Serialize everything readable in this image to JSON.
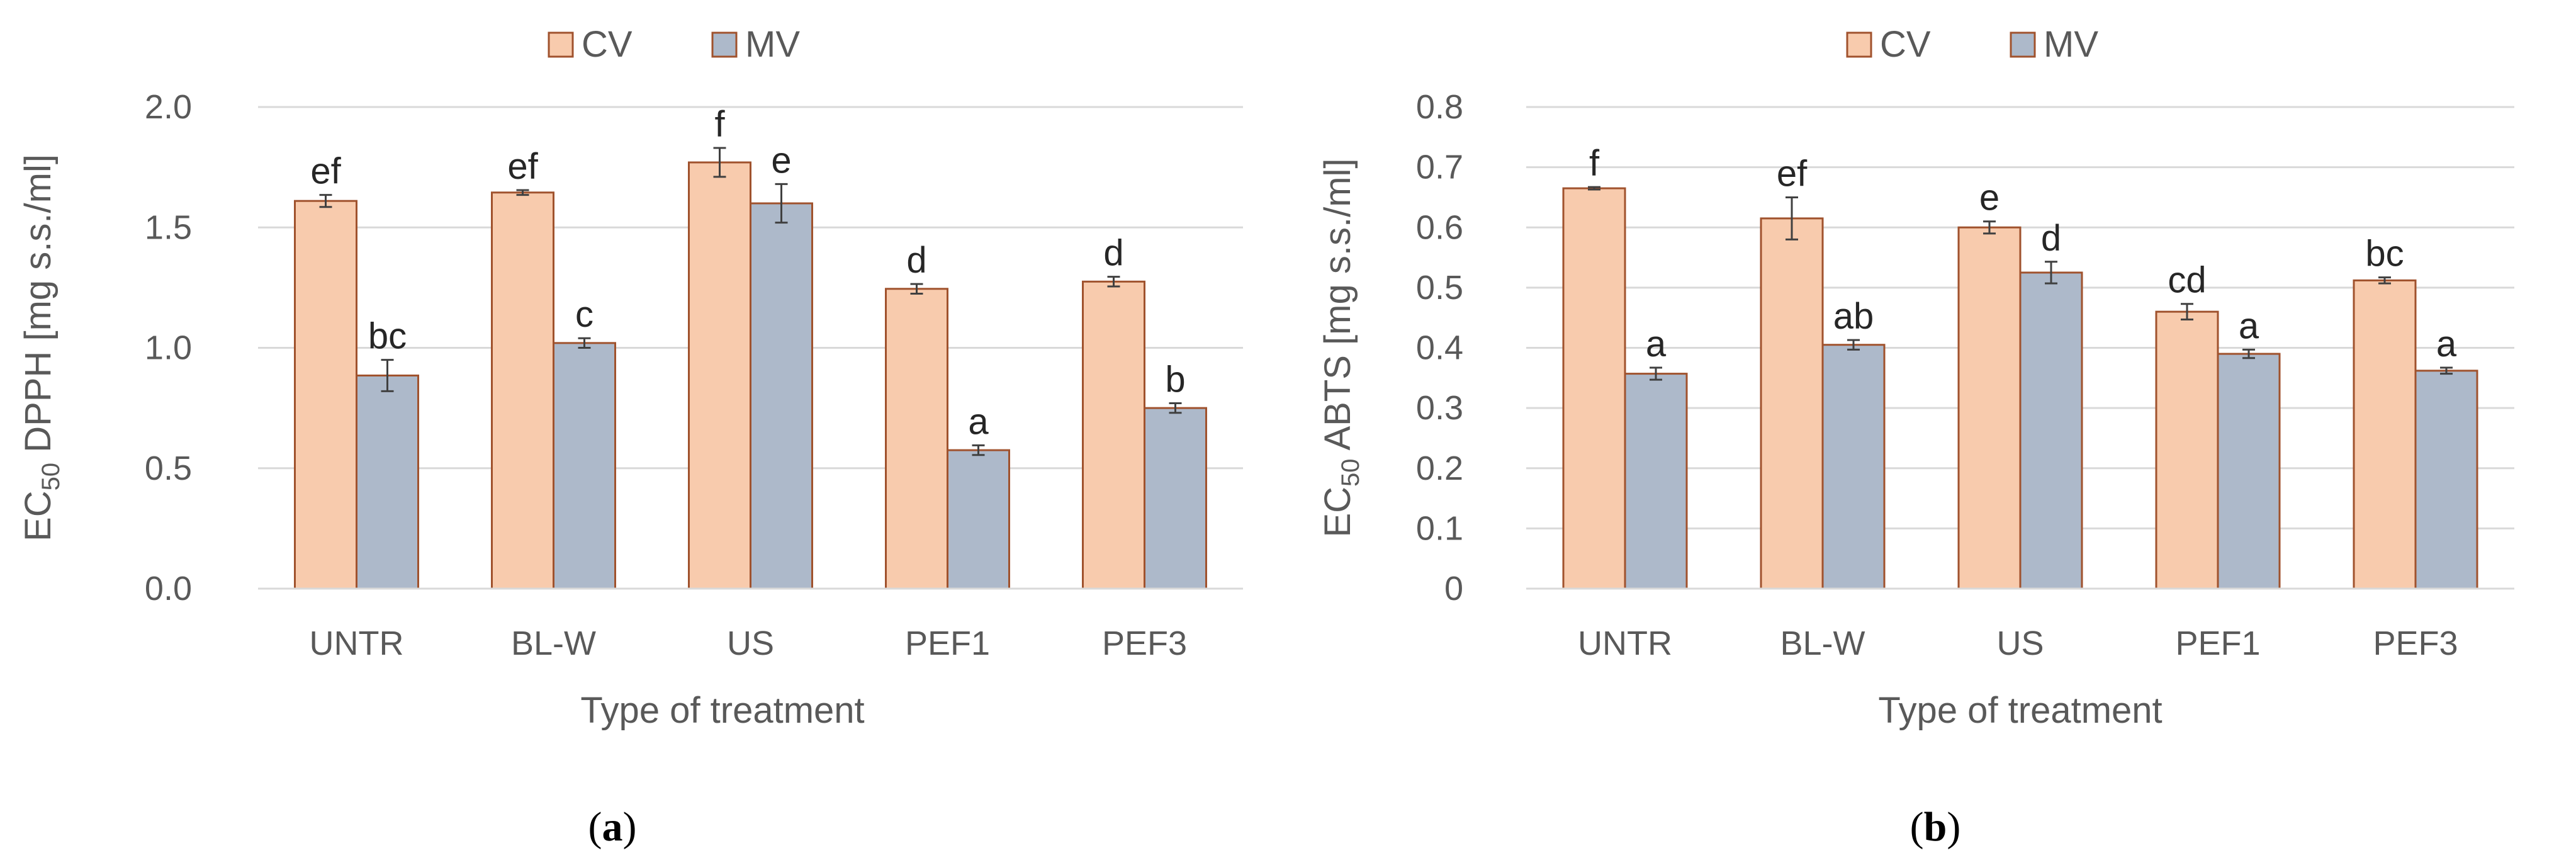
{
  "colors": {
    "cv": "#F8CBAD",
    "mv": "#ADB9CA",
    "bar_edge": "#A0522D",
    "grid": "#D9D9D9",
    "error": "#404040"
  },
  "chart_data": [
    {
      "type": "bar",
      "categories": [
        "UNTR",
        "BL-W",
        "US",
        "PEF1",
        "PEF3"
      ],
      "series": [
        {
          "name": "CV",
          "values": [
            1.61,
            1.645,
            1.77,
            1.245,
            1.275
          ],
          "errors": [
            0.025,
            0.01,
            0.06,
            0.02,
            0.02
          ],
          "letters": [
            "ef",
            "ef",
            "f",
            "d",
            "d"
          ]
        },
        {
          "name": "MV",
          "values": [
            0.885,
            1.02,
            1.6,
            0.575,
            0.75
          ],
          "errors": [
            0.065,
            0.02,
            0.08,
            0.02,
            0.02
          ],
          "letters": [
            "bc",
            "c",
            "e",
            "a",
            "b"
          ]
        }
      ],
      "ylim": [
        0,
        2.0
      ],
      "yticks": [
        "0.0",
        "0.5",
        "1.0",
        "1.5",
        "2.0"
      ],
      "ylabel_pre": "EC",
      "ylabel_sub": "50",
      "ylabel_post": " DPPH [mg s.s./ml]",
      "xlabel": "Type of treatment",
      "caption_open": "(",
      "caption_letter": "a",
      "caption_close": ")",
      "legend_position": "top"
    },
    {
      "type": "bar",
      "categories": [
        "UNTR",
        "BL-W",
        "US",
        "PEF1",
        "PEF3"
      ],
      "series": [
        {
          "name": "CV",
          "values": [
            0.665,
            0.615,
            0.6,
            0.46,
            0.512
          ],
          "errors": [
            0.002,
            0.035,
            0.01,
            0.013,
            0.005
          ],
          "letters": [
            "f",
            "ef",
            "e",
            "cd",
            "bc"
          ]
        },
        {
          "name": "MV",
          "values": [
            0.357,
            0.405,
            0.525,
            0.39,
            0.362
          ],
          "errors": [
            0.01,
            0.008,
            0.018,
            0.007,
            0.005
          ],
          "letters": [
            "a",
            "ab",
            "d",
            "a",
            "a"
          ]
        }
      ],
      "ylim": [
        0,
        0.8
      ],
      "yticks": [
        "0",
        "0.1",
        "0.2",
        "0.3",
        "0.4",
        "0.5",
        "0.6",
        "0.7",
        "0.8"
      ],
      "ylabel_pre": "EC",
      "ylabel_sub": "50",
      "ylabel_post": " ABTS [mg s.s./ml]",
      "xlabel": "Type of treatment",
      "caption_open": "(",
      "caption_letter": "b",
      "caption_close": ")",
      "legend_position": "top"
    }
  ]
}
